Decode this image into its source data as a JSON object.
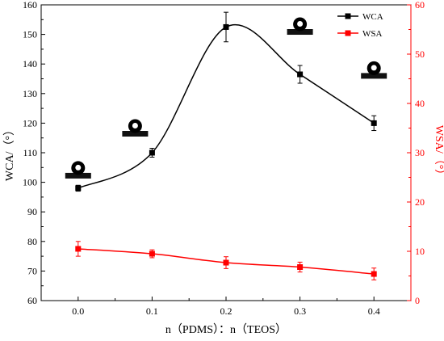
{
  "chart_data": {
    "type": "line",
    "x": [
      0.0,
      0.1,
      0.2,
      0.3,
      0.4
    ],
    "x_tick_labels": [
      "0.0",
      "0.1",
      "0.2",
      "0.3",
      "0.4"
    ],
    "xlim": [
      -0.05,
      0.45
    ],
    "xlabel": "n（PDMS）：n（TEOS）",
    "ylabel_left": "WCA/（°）",
    "ylabel_right": "WSA/（°）",
    "ylim_left": [
      60,
      160
    ],
    "ylim_right": [
      0,
      60
    ],
    "y_ticks_left": [
      "60",
      "70",
      "80",
      "90",
      "100",
      "110",
      "120",
      "130",
      "140",
      "150",
      "160"
    ],
    "y_ticks_right": [
      "0",
      "10",
      "20",
      "30",
      "40",
      "50",
      "60"
    ],
    "legend_position": "top-right",
    "grid": false,
    "series": [
      {
        "name": "WCA",
        "axis": "left",
        "color": "#000000",
        "marker": "square",
        "values": [
          98,
          110,
          152.5,
          136.5,
          120
        ],
        "errors": [
          1,
          1.5,
          5,
          3,
          2.5
        ],
        "droplet_icons": true
      },
      {
        "name": "WSA",
        "axis": "right",
        "color": "#ff0000",
        "marker": "square",
        "values": [
          10.5,
          9.5,
          7.7,
          6.8,
          5.4
        ],
        "errors": [
          1.5,
          0.8,
          1.2,
          1.0,
          1.2
        ]
      }
    ]
  }
}
